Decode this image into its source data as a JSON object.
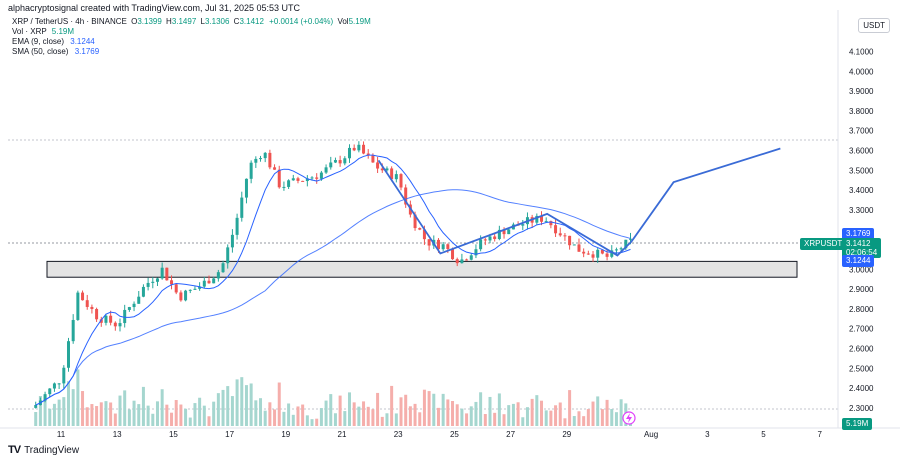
{
  "header": {
    "created_by": "alphacryptosignal created with TradingView.com, Jul 31, 2025 05:53 UTC",
    "symbol": "XRP / TetherUS · 4h · BINANCE",
    "open_label": "O",
    "open": "3.1399",
    "high_label": "H",
    "high": "3.1497",
    "low_label": "L",
    "low": "3.1306",
    "close_label": "C",
    "close": "3.1412",
    "change": "+0.0014 (+0.04%)",
    "vol_label": "Vol",
    "vol": "5.19M",
    "vol_row_label": "Vol · XRP",
    "vol_row_val": "5.19M",
    "ema_label": "EMA (9, close)",
    "ema_val": "3.1244",
    "sma_label": "SMA (50, close)",
    "sma_val": "3.1769"
  },
  "currency": "USDT",
  "price_axis": [
    "4.1000",
    "4.0000",
    "3.9000",
    "3.8000",
    "3.7000",
    "3.6000",
    "3.5000",
    "3.4000",
    "3.3000",
    "3.0000",
    "2.9000",
    "2.8000",
    "2.7000",
    "2.6000",
    "2.5000",
    "2.4000",
    "2.3000"
  ],
  "time_axis": [
    "11",
    "13",
    "15",
    "17",
    "19",
    "21",
    "23",
    "25",
    "27",
    "29",
    "Aug",
    "3",
    "5",
    "7"
  ],
  "badges": {
    "sma": "3.1769",
    "symbol": "XRPUSDT",
    "price": "3.1412",
    "countdown": "02:06:54",
    "ema": "3.1244",
    "volume": "5.19M"
  },
  "brand": "TradingView",
  "colors": {
    "up": "#26a69a",
    "down": "#ef5350",
    "ma": "#2962ff",
    "zone": "#e4e4e4"
  },
  "chart_data": {
    "type": "candlestick",
    "symbol": "XRPUSDT",
    "timeframe": "4h",
    "close_recent": 3.1412,
    "ema9": 3.1244,
    "sma50": 3.1769,
    "support_zone": [
      2.96,
      3.04
    ],
    "projection": [
      {
        "date": "Jul 24",
        "price": 3.02
      },
      {
        "date": "Jul 29",
        "price": 3.13
      },
      {
        "date": "Aug 4",
        "price": 3.6
      }
    ],
    "y_range": [
      2.25,
      4.15
    ]
  }
}
